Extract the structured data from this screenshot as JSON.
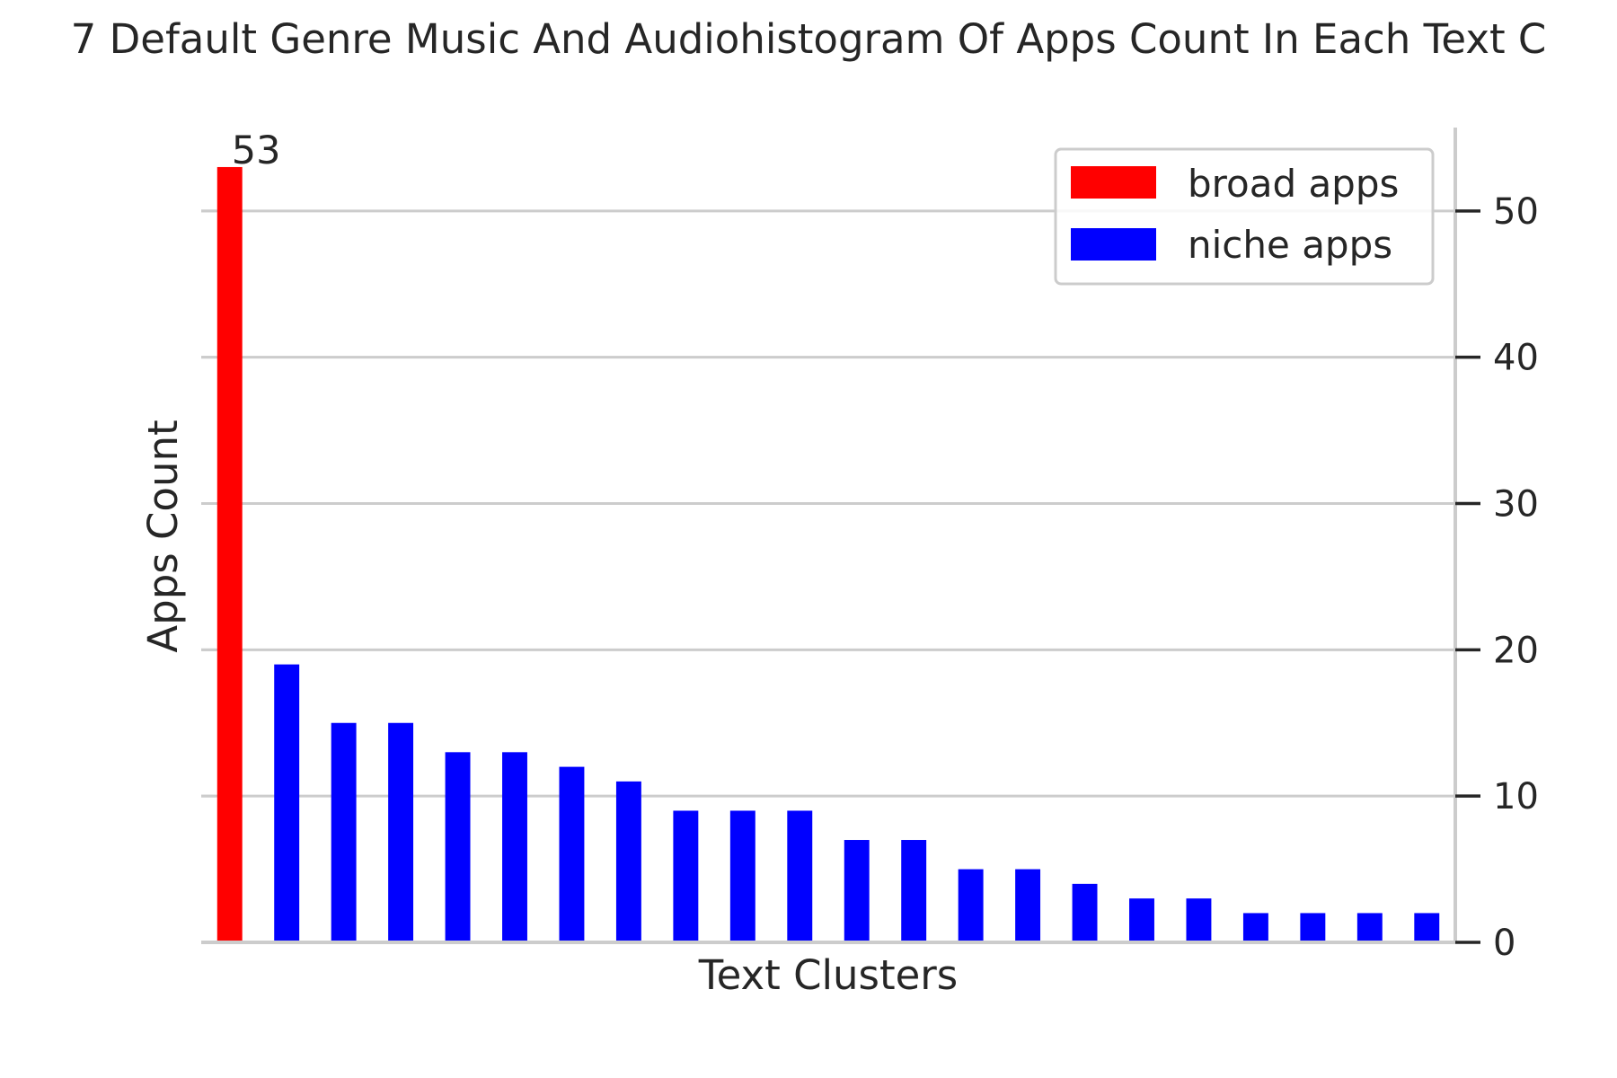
{
  "chart_data": {
    "type": "bar",
    "title": "7 Default Genre Music And Audiohistogram Of Apps Count In Each Text C",
    "xlabel": "Text Clusters",
    "ylabel": "Apps Count",
    "ylim": [
      0,
      55.7
    ],
    "yticks": [
      0,
      10,
      20,
      30,
      40,
      50
    ],
    "y_axis_side": "right",
    "grid": true,
    "legend_position": "top-right",
    "series": [
      {
        "name": "broad apps",
        "color": "#ff0000",
        "values": [
          53
        ]
      },
      {
        "name": "niche apps",
        "color": "#0000ff",
        "values": [
          19,
          15,
          15,
          13,
          13,
          12,
          11,
          9,
          9,
          9,
          7,
          7,
          5,
          5,
          4,
          3,
          3,
          2,
          2,
          2,
          2
        ]
      }
    ],
    "annotations": [
      {
        "text": "53",
        "series": 0,
        "index": 0
      }
    ]
  }
}
